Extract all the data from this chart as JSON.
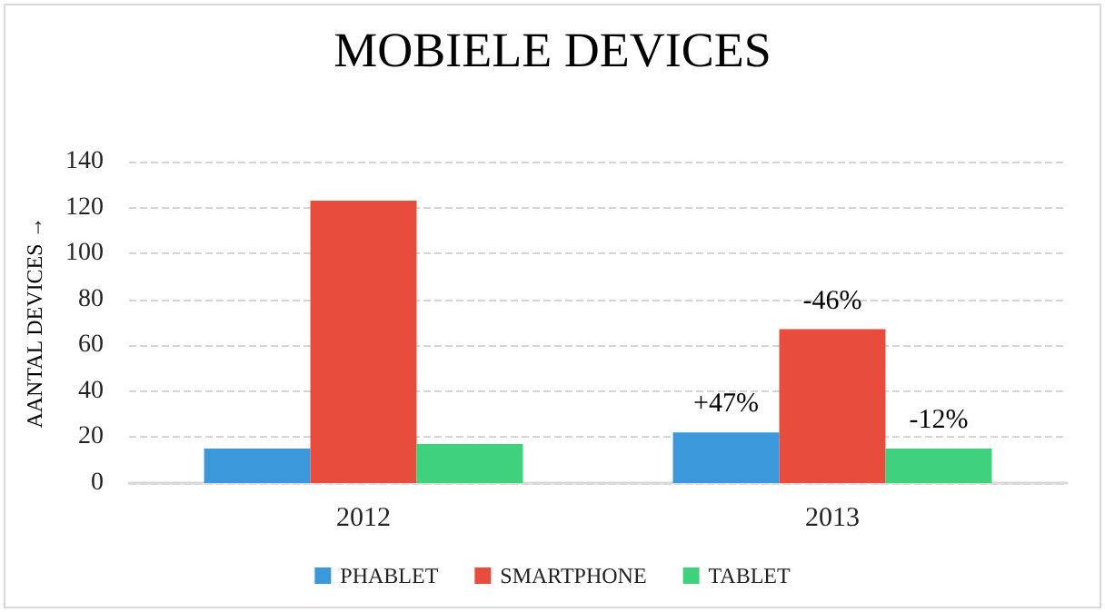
{
  "chart_data": {
    "type": "bar",
    "title": "MOBIELE DEVICES",
    "ylabel": "AANTAL DEVICES →",
    "categories": [
      "2012",
      "2013"
    ],
    "series": [
      {
        "name": "PHABLET",
        "color": "#3a98db",
        "values": [
          15,
          22
        ]
      },
      {
        "name": "SMARTPHONE",
        "color": "#e84c3d",
        "values": [
          123,
          67
        ]
      },
      {
        "name": "TABLET",
        "color": "#3fd17c",
        "values": [
          17,
          15
        ]
      }
    ],
    "annotations": [
      "+47%",
      "-46%",
      "-12%"
    ],
    "ylim": [
      0,
      140
    ],
    "yticks": [
      0,
      20,
      40,
      60,
      80,
      100,
      120,
      140
    ],
    "grid": "y",
    "legend": "bottom"
  }
}
